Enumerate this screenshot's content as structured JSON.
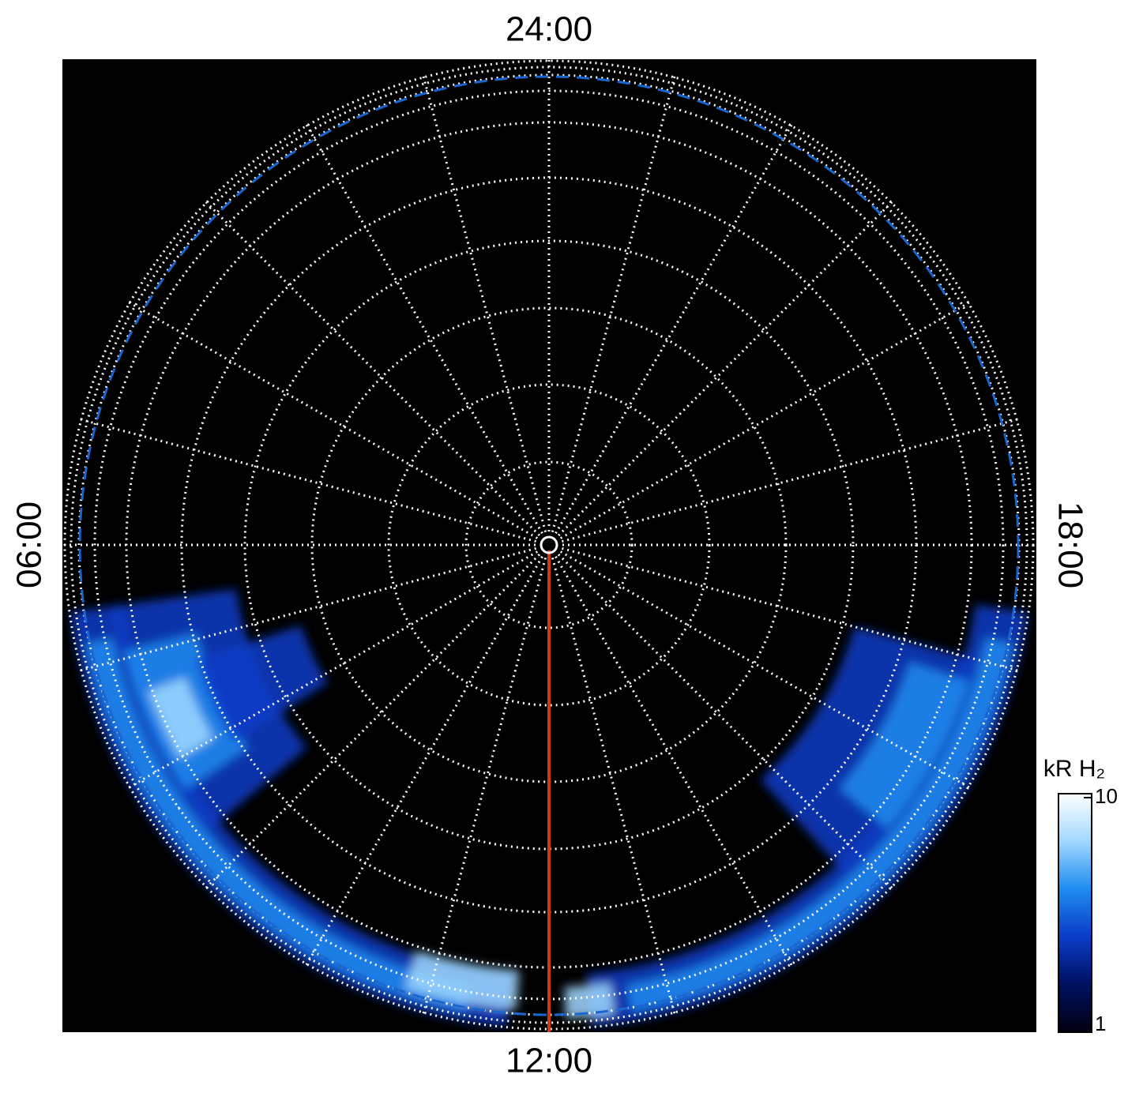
{
  "chart_data": {
    "type": "polar-image",
    "labels": {
      "top": "24:00",
      "left": "06:00",
      "bottom": "12:00",
      "right": "18:00"
    },
    "colorbar": {
      "title": "kR H₂",
      "lim": [
        1,
        10
      ],
      "ticks": [
        1,
        10
      ],
      "log": true,
      "colors": [
        "#000010",
        "#001060",
        "#0a3cc8",
        "#1e8cf0",
        "#a0d8ff",
        "#ffffff"
      ]
    },
    "meridian_color": "#d03a10",
    "boundary_color": "#1a66d0"
  }
}
